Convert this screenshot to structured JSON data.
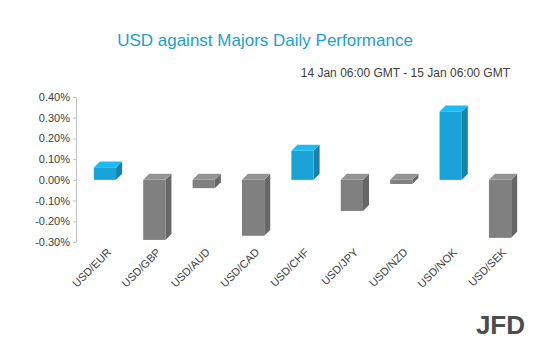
{
  "chart_data": {
    "type": "bar",
    "title": "USD against Majors Daily Performance",
    "subtitle": "14 Jan 06:00 GMT - 15 Jan 06:00 GMT",
    "categories": [
      "USD/EUR",
      "USD/GBP",
      "USD/AUD",
      "USD/CAD",
      "USD/CHF",
      "USD/JPY",
      "USD/NZD",
      "USD/NOK",
      "USD/SEK"
    ],
    "values": [
      0.06,
      -0.29,
      -0.04,
      -0.27,
      0.14,
      -0.15,
      -0.02,
      0.33,
      -0.28
    ],
    "colors": [
      "#1aa3d6",
      "#808080",
      "#808080",
      "#808080",
      "#1aa3d6",
      "#808080",
      "#808080",
      "#1aa3d6",
      "#808080"
    ],
    "ylim": [
      -0.3,
      0.4
    ],
    "yticks": [
      {
        "value": 0.4,
        "label": "0.40%"
      },
      {
        "value": 0.3,
        "label": "0.30%"
      },
      {
        "value": 0.2,
        "label": "0.20%"
      },
      {
        "value": 0.1,
        "label": "0.10%"
      },
      {
        "value": 0,
        "label": "0.00%"
      },
      {
        "value": -0.1,
        "label": "-0.10%"
      },
      {
        "value": -0.2,
        "label": "-0.20%"
      },
      {
        "value": -0.3,
        "label": "-0.30%"
      }
    ],
    "grid": false,
    "annotations": [
      "JFD"
    ]
  }
}
